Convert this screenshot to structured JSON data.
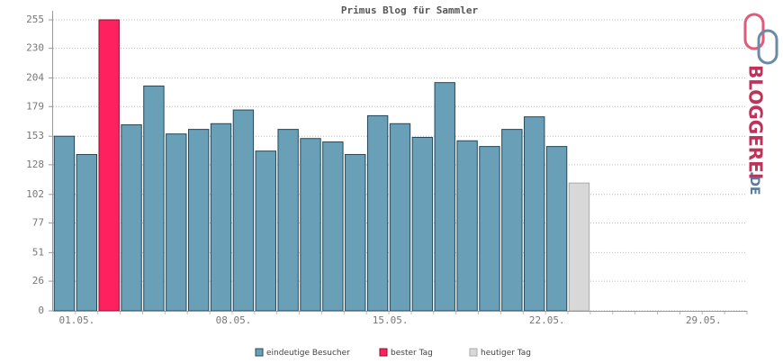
{
  "chart_data": {
    "type": "bar",
    "title": "Primus Blog für Sammler",
    "categories": [
      "01.05.",
      null,
      null,
      null,
      null,
      null,
      null,
      "08.05.",
      null,
      null,
      null,
      null,
      null,
      null,
      "15.05.",
      null,
      null,
      null,
      null,
      null,
      null,
      "22.05.",
      null,
      null,
      null,
      null,
      null,
      null,
      "29.05.",
      null,
      null
    ],
    "series": [
      {
        "name": "eindeutige Besucher",
        "color": "#6a9fb8",
        "values": [
          153,
          137,
          null,
          163,
          197,
          155,
          159,
          164,
          176,
          140,
          159,
          151,
          148,
          137,
          171,
          164,
          152,
          200,
          149,
          144,
          159,
          170,
          144,
          null,
          null,
          null,
          null,
          null,
          null,
          null,
          null
        ]
      },
      {
        "name": "bester Tag",
        "color": "#ff2060",
        "values": [
          null,
          null,
          255,
          null,
          null,
          null,
          null,
          null,
          null,
          null,
          null,
          null,
          null,
          null,
          null,
          null,
          null,
          null,
          null,
          null,
          null,
          null,
          null,
          null,
          null,
          null,
          null,
          null,
          null,
          null,
          null
        ]
      },
      {
        "name": "heutiger Tag",
        "color": "#d8d8d8",
        "values": [
          null,
          null,
          null,
          null,
          null,
          null,
          null,
          null,
          null,
          null,
          null,
          null,
          null,
          null,
          null,
          null,
          null,
          null,
          null,
          null,
          null,
          null,
          null,
          112,
          null,
          null,
          null,
          null,
          null,
          null,
          null
        ]
      }
    ],
    "ylim": [
      0,
      255
    ],
    "yticks": [
      0,
      26,
      51,
      77,
      102,
      128,
      153,
      179,
      204,
      230,
      255
    ],
    "grid": true,
    "logo": {
      "name": "BLOGGEREI",
      "suffix": ".DE"
    }
  }
}
